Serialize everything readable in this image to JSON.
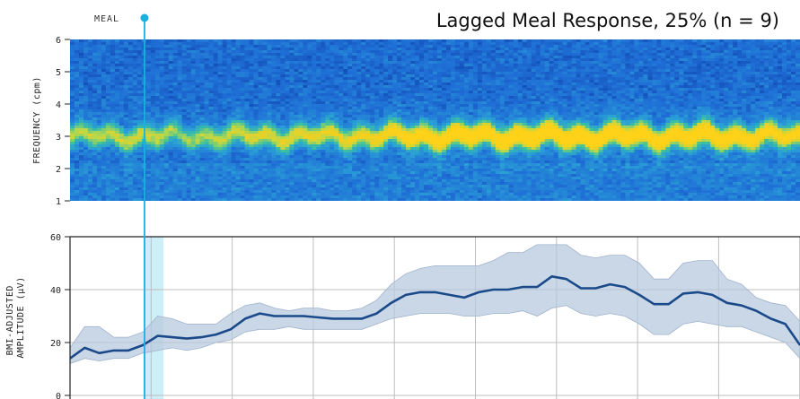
{
  "chart_data": [
    {
      "type": "heatmap",
      "title": "Lagged Meal Response, 25% (n = 9)",
      "ylabel": "FREQUENCY (cpm)",
      "ylim": [
        1,
        6
      ],
      "yticks": [
        1,
        2,
        3,
        4,
        5,
        6
      ],
      "colormap": [
        "#0d3fa8",
        "#1f6fd6",
        "#2a9fd6",
        "#3cc0a0",
        "#b8d84a",
        "#f2d020",
        "#ffd21a"
      ],
      "band_center_cpm": 3.0,
      "band_intensity_profile": [
        [
          0.0,
          0.45
        ],
        [
          0.1,
          0.5
        ],
        [
          0.15,
          0.4
        ],
        [
          0.22,
          0.5
        ],
        [
          0.3,
          0.55
        ],
        [
          0.4,
          0.58
        ],
        [
          0.48,
          0.8
        ],
        [
          0.55,
          0.9
        ],
        [
          0.65,
          0.95
        ],
        [
          0.72,
          0.92
        ],
        [
          0.8,
          0.85
        ],
        [
          0.88,
          0.9
        ],
        [
          0.95,
          0.75
        ],
        [
          1.0,
          0.7
        ]
      ],
      "annotation": {
        "label": "MEAL",
        "x_fraction": 0.105,
        "color": "#1ab0e0"
      }
    },
    {
      "type": "line",
      "ylabel": "BMI-ADJUSTED AMPLITUDE (μV)",
      "ylim": [
        0,
        60
      ],
      "yticks": [
        0,
        20,
        40,
        60
      ],
      "xlim": [
        0,
        100
      ],
      "x": [
        0,
        2,
        4,
        6,
        8,
        10,
        12,
        14,
        16,
        18,
        20,
        22,
        24,
        26,
        28,
        30,
        32,
        34,
        36,
        38,
        40,
        42,
        44,
        46,
        48,
        50,
        52,
        54,
        56,
        58,
        60,
        62,
        64,
        66,
        68,
        70,
        72,
        74,
        76,
        78,
        80,
        82,
        84,
        86,
        88,
        90,
        92,
        94,
        96,
        98,
        100
      ],
      "series": [
        {
          "color": "#1a4a8a",
          "values": [
            14,
            18,
            16,
            17,
            17,
            19,
            22.5,
            22,
            21.5,
            22,
            23,
            25,
            29,
            31,
            30,
            30,
            30,
            29.5,
            29,
            29,
            29,
            31,
            35,
            38,
            39,
            39,
            38,
            37,
            39,
            40,
            40,
            41,
            41,
            45,
            44,
            40.5,
            40.5,
            42,
            41,
            38,
            34.5,
            34.5,
            38.5,
            39,
            38,
            35,
            34,
            32,
            29,
            27,
            19
          ]
        }
      ],
      "band": {
        "color": "#b8c9dd",
        "upper": [
          18,
          26,
          26,
          22,
          22,
          24,
          30,
          29,
          27,
          27,
          27,
          31,
          34,
          35,
          33,
          32,
          33,
          33,
          32,
          32,
          33,
          36,
          42,
          46,
          48,
          49,
          49,
          49,
          49,
          51,
          54,
          54,
          57,
          57,
          57,
          53,
          52,
          53,
          53,
          50,
          44,
          44,
          50,
          51,
          51,
          44,
          42,
          37,
          35,
          34,
          28
        ],
        "lower": [
          12,
          14,
          13,
          14,
          14,
          16,
          17,
          18,
          17,
          18,
          20,
          21,
          24,
          25,
          25,
          26,
          25,
          25,
          25,
          25,
          25,
          27,
          29,
          30,
          31,
          31,
          31,
          30,
          30,
          31,
          31,
          32,
          30,
          33,
          34,
          31,
          30,
          31,
          30,
          27,
          23,
          23,
          27,
          28,
          27,
          26,
          26,
          24,
          22,
          20,
          14
        ]
      },
      "highlight_span": {
        "x": [
          10.2,
          12.8
        ],
        "color": "#cdeff8"
      },
      "annotation": {
        "x": 10.2,
        "color": "#1ab0e0"
      },
      "grid": true
    }
  ]
}
